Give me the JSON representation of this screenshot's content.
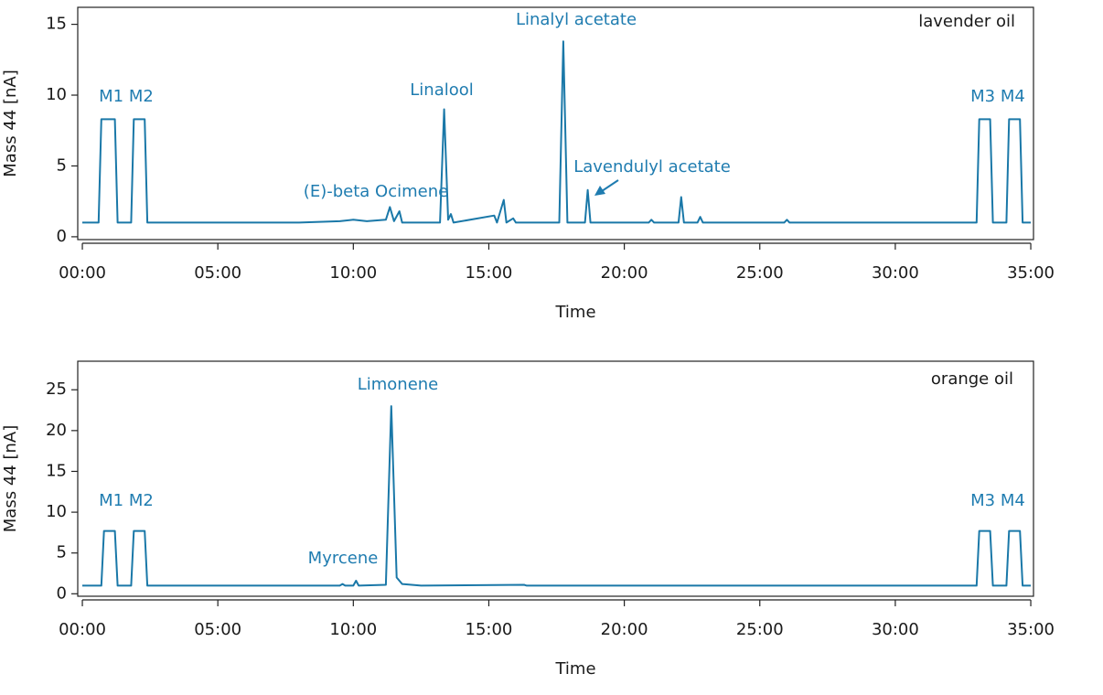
{
  "chart_data": [
    {
      "type": "line",
      "sample_label": "lavender oil",
      "x_label": "Time",
      "y_label": "Mass 44 [nA]",
      "color": "#1a78a8",
      "xlim": [
        -0.17,
        35.1
      ],
      "ylim": [
        -0.2,
        16.2
      ],
      "xticks": [
        {
          "value": 0,
          "label": "00:00"
        },
        {
          "value": 5,
          "label": "05:00"
        },
        {
          "value": 10,
          "label": "10:00"
        },
        {
          "value": 15,
          "label": "15:00"
        },
        {
          "value": 20,
          "label": "20:00"
        },
        {
          "value": 25,
          "label": "25:00"
        },
        {
          "value": 30,
          "label": "30:00"
        },
        {
          "value": 35,
          "label": "35:00"
        }
      ],
      "yticks": [
        0,
        5,
        10,
        15
      ],
      "annotations": [
        "M1 M2",
        "Linalool",
        "Linalyl acetate",
        "(E)-beta Ocimene",
        "Lavendulyl acetate",
        "M3 M4"
      ],
      "x": [
        0,
        0.6,
        0.7,
        1.2,
        1.3,
        1.8,
        1.9,
        2.3,
        2.4,
        8,
        9.5,
        10,
        10.5,
        11.2,
        11.35,
        11.5,
        11.7,
        11.8,
        13.2,
        13.35,
        13.5,
        13.6,
        13.7,
        15.2,
        15.3,
        15.55,
        15.65,
        15.9,
        16,
        17.6,
        17.75,
        17.9,
        18.55,
        18.65,
        18.75,
        20.9,
        21,
        21.1,
        22,
        22.1,
        22.2,
        22.7,
        22.8,
        22.9,
        25.9,
        26,
        26.1,
        33,
        33.1,
        33.5,
        33.6,
        34.1,
        34.2,
        34.6,
        34.7,
        35
      ],
      "values": [
        1,
        1,
        8.3,
        8.3,
        1,
        1,
        8.3,
        8.3,
        1,
        1,
        1.1,
        1.2,
        1.1,
        1.2,
        2.1,
        1.1,
        1.8,
        1,
        1,
        9,
        1.2,
        1.6,
        1,
        1.5,
        1,
        2.6,
        1,
        1.3,
        1,
        1,
        13.8,
        1,
        1,
        3.3,
        1,
        1,
        1.2,
        1,
        1,
        2.8,
        1,
        1,
        1.4,
        1,
        1,
        1.2,
        1,
        1,
        8.3,
        8.3,
        1,
        1,
        8.3,
        8.3,
        1,
        1
      ]
    },
    {
      "type": "line",
      "sample_label": "orange oil",
      "x_label": "Time",
      "y_label": "Mass 44 [nA]",
      "color": "#1a78a8",
      "xlim": [
        -0.17,
        35.1
      ],
      "ylim": [
        -0.3,
        28.5
      ],
      "xticks": [
        {
          "value": 0,
          "label": "00:00"
        },
        {
          "value": 5,
          "label": "05:00"
        },
        {
          "value": 10,
          "label": "10:00"
        },
        {
          "value": 15,
          "label": "15:00"
        },
        {
          "value": 20,
          "label": "20:00"
        },
        {
          "value": 25,
          "label": "25:00"
        },
        {
          "value": 30,
          "label": "30:00"
        },
        {
          "value": 35,
          "label": "35:00"
        }
      ],
      "yticks": [
        0,
        5,
        10,
        15,
        20,
        25
      ],
      "annotations": [
        "M1 M2",
        "Limonene",
        "Myrcene",
        "M3 M4"
      ],
      "x": [
        0,
        0.7,
        0.8,
        1.2,
        1.3,
        1.8,
        1.9,
        2.3,
        2.4,
        9.5,
        9.6,
        9.7,
        10,
        10.1,
        10.2,
        11.2,
        11.4,
        11.6,
        11.8,
        12.5,
        16.3,
        16.4,
        33,
        33.1,
        33.5,
        33.6,
        34.1,
        34.2,
        34.6,
        34.7,
        35
      ],
      "values": [
        1,
        1,
        7.7,
        7.7,
        1,
        1,
        7.7,
        7.7,
        1,
        1,
        1.2,
        1,
        1,
        1.6,
        1,
        1.1,
        23,
        2,
        1.2,
        1,
        1.1,
        1,
        1,
        7.7,
        7.7,
        1,
        1,
        7.7,
        7.7,
        1,
        1
      ]
    }
  ]
}
